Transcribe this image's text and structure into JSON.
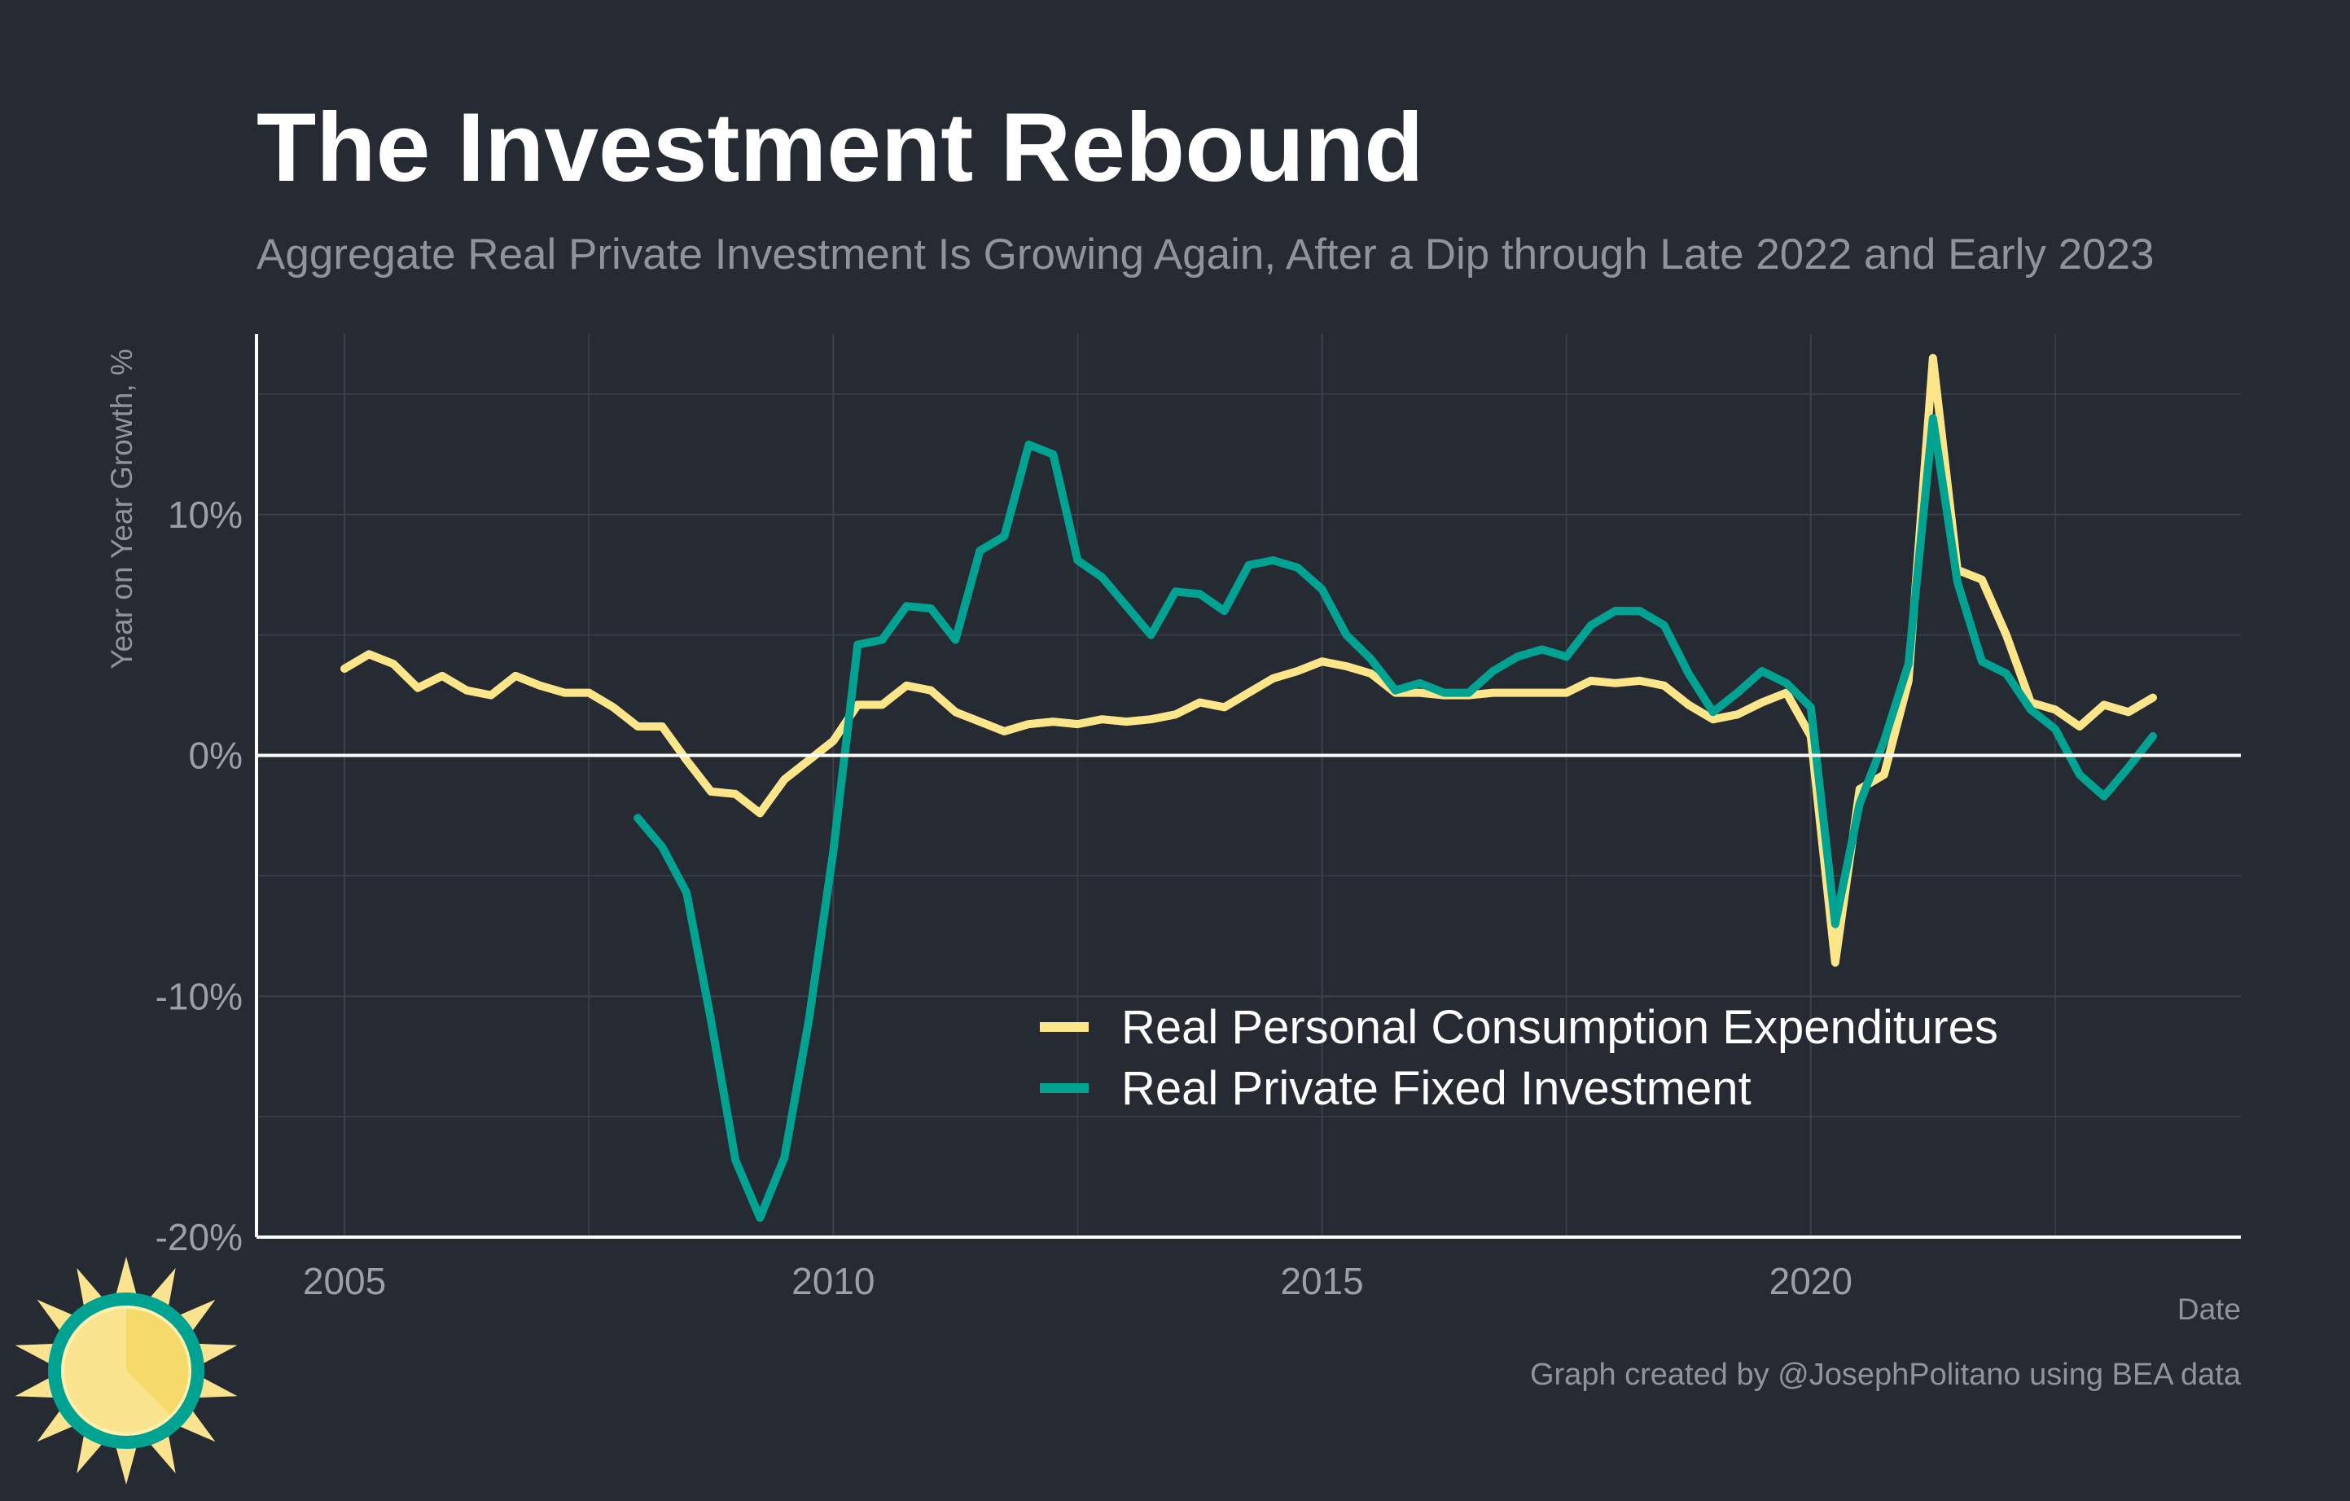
{
  "colors": {
    "background": "#252a33",
    "grid": "#3c414b",
    "axis": "#ffffff",
    "pce": "#fde68a",
    "investment": "#00a391",
    "logo_sun": "#fbe48f",
    "logo_ring": "#00a391"
  },
  "chart_data": {
    "type": "line",
    "title": "The Investment Rebound",
    "subtitle": "Aggregate Real Private Investment Is Growing Again, After a Dip through Late 2022 and Early 2023",
    "xlabel": "Date",
    "ylabel": "Year on Year Growth, %",
    "xlim": [
      2004.1,
      2024.4
    ],
    "ylim": [
      -20,
      17.5
    ],
    "x_ticks": [
      2005,
      2010,
      2015,
      2020
    ],
    "x_tick_labels": [
      "2005",
      "2010",
      "2015",
      "2020"
    ],
    "y_ticks": [
      -20,
      -10,
      0,
      10
    ],
    "y_tick_labels": [
      "-20%",
      "-10%",
      "0%",
      "10%"
    ],
    "grid": true,
    "legend_position": "bottom-right",
    "series": [
      {
        "name": "Real Personal Consumption Expenditures",
        "color": "#fde68a",
        "x": [
          2005.0,
          2005.25,
          2005.5,
          2005.75,
          2006.0,
          2006.25,
          2006.5,
          2006.75,
          2007.0,
          2007.25,
          2007.5,
          2007.75,
          2008.0,
          2008.25,
          2008.5,
          2008.75,
          2009.0,
          2009.25,
          2009.5,
          2009.75,
          2010.0,
          2010.25,
          2010.5,
          2010.75,
          2011.0,
          2011.25,
          2011.5,
          2011.75,
          2012.0,
          2012.25,
          2012.5,
          2012.75,
          2013.0,
          2013.25,
          2013.5,
          2013.75,
          2014.0,
          2014.25,
          2014.5,
          2014.75,
          2015.0,
          2015.25,
          2015.5,
          2015.75,
          2016.0,
          2016.25,
          2016.5,
          2016.75,
          2017.0,
          2017.25,
          2017.5,
          2017.75,
          2018.0,
          2018.25,
          2018.5,
          2018.75,
          2019.0,
          2019.25,
          2019.5,
          2019.75,
          2020.0,
          2020.25,
          2020.5,
          2020.75,
          2021.0,
          2021.25,
          2021.5,
          2021.75,
          2022.0,
          2022.25,
          2022.5,
          2022.75,
          2023.0,
          2023.25,
          2023.5
        ],
        "values": [
          3.6,
          4.2,
          3.8,
          2.8,
          3.3,
          2.7,
          2.5,
          3.3,
          2.9,
          2.6,
          2.6,
          2.0,
          1.2,
          1.2,
          -0.2,
          -1.5,
          -1.6,
          -2.4,
          -1.0,
          -0.2,
          0.6,
          2.1,
          2.1,
          2.9,
          2.7,
          1.8,
          1.4,
          1.0,
          1.3,
          1.4,
          1.3,
          1.5,
          1.4,
          1.5,
          1.7,
          2.2,
          2.0,
          2.6,
          3.2,
          3.5,
          3.9,
          3.7,
          3.4,
          2.6,
          2.6,
          2.5,
          2.5,
          2.6,
          2.6,
          2.6,
          2.6,
          3.1,
          3.0,
          3.1,
          2.9,
          2.1,
          1.5,
          1.7,
          2.2,
          2.6,
          0.8,
          -8.6,
          -1.4,
          -0.8,
          3.1,
          16.5,
          7.7,
          7.3,
          5.0,
          2.2,
          1.9,
          1.2,
          2.1,
          1.8,
          2.4
        ]
      },
      {
        "name": "Real Private Fixed Investment",
        "color": "#00a391",
        "x": [
          2008.0,
          2008.25,
          2008.5,
          2008.75,
          2009.0,
          2009.25,
          2009.5,
          2009.75,
          2010.0,
          2010.25,
          2010.5,
          2010.75,
          2011.0,
          2011.25,
          2011.5,
          2011.75,
          2012.0,
          2012.25,
          2012.5,
          2012.75,
          2013.0,
          2013.25,
          2013.5,
          2013.75,
          2014.0,
          2014.25,
          2014.5,
          2014.75,
          2015.0,
          2015.25,
          2015.5,
          2015.75,
          2016.0,
          2016.25,
          2016.5,
          2016.75,
          2017.0,
          2017.25,
          2017.5,
          2017.75,
          2018.0,
          2018.25,
          2018.5,
          2018.75,
          2019.0,
          2019.25,
          2019.5,
          2019.75,
          2020.0,
          2020.25,
          2020.5,
          2020.75,
          2021.0,
          2021.25,
          2021.5,
          2021.75,
          2022.0,
          2022.25,
          2022.5,
          2022.75,
          2023.0,
          2023.25,
          2023.5
        ],
        "values": [
          -2.6,
          -3.8,
          -5.7,
          -11.0,
          -16.8,
          -19.2,
          -16.7,
          -11.0,
          -4.0,
          4.6,
          4.8,
          6.2,
          6.1,
          4.8,
          8.5,
          9.1,
          12.9,
          12.5,
          8.1,
          7.4,
          6.2,
          5.0,
          6.8,
          6.7,
          6.0,
          7.9,
          8.1,
          7.8,
          6.9,
          5.0,
          4.0,
          2.7,
          3.0,
          2.6,
          2.6,
          3.5,
          4.1,
          4.4,
          4.1,
          5.4,
          6.0,
          6.0,
          5.4,
          3.4,
          1.8,
          2.6,
          3.5,
          3.0,
          2.0,
          -7.0,
          -2.0,
          0.6,
          3.8,
          14.0,
          7.2,
          3.9,
          3.4,
          1.9,
          1.1,
          -0.8,
          -1.7,
          -0.5,
          0.8
        ]
      }
    ],
    "caption": "Graph created by @JosephPolitano using BEA data"
  }
}
